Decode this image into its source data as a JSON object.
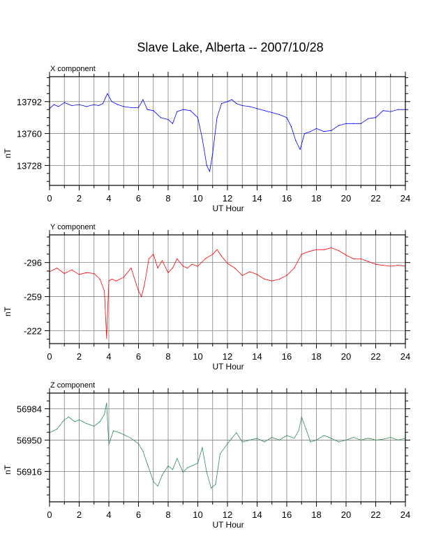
{
  "title": "Slave Lake, Alberta -- 2007/10/28",
  "colors": {
    "x": "#0000ff",
    "y": "#ff0000",
    "z": "#2e8b57",
    "grid": "#808080"
  },
  "chart_data": [
    {
      "type": "line",
      "panel_label": "X component",
      "xlabel": "UT Hour",
      "ylabel": "nT",
      "xlim": [
        0,
        24
      ],
      "ylim": [
        13708,
        13817
      ],
      "x_ticks": [
        "0",
        "2",
        "4",
        "6",
        "8",
        "10",
        "12",
        "14",
        "16",
        "18",
        "20",
        "22",
        "24"
      ],
      "y_ticks": [
        "13792",
        "13760",
        "13728"
      ],
      "y_tick_values": [
        13792,
        13760,
        13728
      ],
      "grid": true,
      "series": [
        {
          "color": "#0000ff",
          "x": [
            0,
            0.3,
            0.6,
            1,
            1.5,
            2,
            2.5,
            3,
            3.3,
            3.6,
            3.9,
            4.2,
            4.6,
            5,
            5.5,
            6,
            6.3,
            6.6,
            7,
            7.5,
            8,
            8.3,
            8.6,
            9,
            9.5,
            10,
            10.3,
            10.6,
            10.8,
            11,
            11.3,
            11.6,
            12,
            12.3,
            12.6,
            13,
            13.5,
            14,
            14.5,
            15,
            15.5,
            16,
            16.3,
            16.6,
            16.9,
            17.2,
            17.6,
            18,
            18.5,
            19,
            19.5,
            20,
            20.5,
            21,
            21.5,
            22,
            22.5,
            23,
            23.5,
            24
          ],
          "values": [
            13785,
            13789,
            13787,
            13791,
            13788,
            13789,
            13787,
            13789,
            13788,
            13790,
            13800,
            13792,
            13789,
            13787,
            13786,
            13786,
            13794,
            13784,
            13783,
            13776,
            13774,
            13770,
            13782,
            13784,
            13783,
            13776,
            13755,
            13728,
            13722,
            13740,
            13776,
            13790,
            13792,
            13794,
            13790,
            13788,
            13787,
            13785,
            13783,
            13781,
            13779,
            13776,
            13767,
            13753,
            13744,
            13760,
            13762,
            13765,
            13762,
            13763,
            13768,
            13770,
            13770,
            13770,
            13775,
            13776,
            13783,
            13782,
            13784,
            13784
          ]
        }
      ]
    },
    {
      "type": "line",
      "panel_label": "Y component",
      "xlabel": "UT Hour",
      "ylabel": "nT",
      "xlim": [
        0,
        24
      ],
      "ylim": [
        -208,
        -326
      ],
      "x_ticks": [
        "0",
        "2",
        "4",
        "6",
        "8",
        "10",
        "12",
        "14",
        "16",
        "18",
        "20",
        "22",
        "24"
      ],
      "y_ticks": [
        "-222",
        "-259",
        "-296"
      ],
      "y_tick_values": [
        -222,
        -259,
        -296
      ],
      "grid": true,
      "series": [
        {
          "color": "#ff0000",
          "x": [
            0,
            0.5,
            1,
            1.5,
            2,
            2.5,
            3,
            3.4,
            3.7,
            3.85,
            4,
            4.2,
            4.5,
            5,
            5.5,
            6,
            6.2,
            6.4,
            6.7,
            7,
            7.3,
            7.6,
            8,
            8.3,
            8.6,
            9,
            9.3,
            9.6,
            10,
            10.5,
            11,
            11.3,
            11.6,
            12,
            12.5,
            13,
            13.5,
            14,
            14.5,
            15,
            15.5,
            16,
            16.5,
            17,
            17.5,
            18,
            18.5,
            19,
            19.5,
            20,
            20.5,
            21,
            21.5,
            22,
            22.5,
            23,
            23.5,
            24
          ],
          "values": [
            -286,
            -290,
            -284,
            -288,
            -283,
            -285,
            -284,
            -278,
            -265,
            -214,
            -276,
            -278,
            -276,
            -280,
            -290,
            -265,
            -259,
            -272,
            -300,
            -305,
            -290,
            -298,
            -285,
            -290,
            -300,
            -292,
            -290,
            -294,
            -292,
            -300,
            -305,
            -310,
            -303,
            -295,
            -290,
            -282,
            -286,
            -283,
            -278,
            -276,
            -278,
            -282,
            -290,
            -305,
            -308,
            -310,
            -310,
            -312,
            -309,
            -304,
            -300,
            -300,
            -297,
            -294,
            -293,
            -292,
            -293,
            -292
          ]
        }
      ]
    },
    {
      "type": "line",
      "panel_label": "Z component",
      "xlabel": "UT Hour",
      "ylabel": "nT",
      "xlim": [
        0,
        24
      ],
      "ylim": [
        56883,
        57001
      ],
      "x_ticks": [
        "0",
        "2",
        "4",
        "6",
        "8",
        "10",
        "12",
        "14",
        "16",
        "18",
        "20",
        "22",
        "24"
      ],
      "y_ticks": [
        "56984",
        "56950",
        "56916"
      ],
      "y_tick_values": [
        56984,
        56950,
        56916
      ],
      "grid": true,
      "series": [
        {
          "color": "#2e8b57",
          "x": [
            0,
            0.5,
            1,
            1.3,
            1.7,
            2,
            2.5,
            3,
            3.4,
            3.7,
            3.85,
            4,
            4.3,
            4.7,
            5,
            5.5,
            6,
            6.3,
            6.6,
            7,
            7.3,
            7.6,
            8,
            8.3,
            8.6,
            9,
            9.3,
            9.6,
            10,
            10.3,
            10.6,
            10.9,
            11.2,
            11.5,
            12,
            12.3,
            12.6,
            13,
            13.5,
            14,
            14.5,
            15,
            15.5,
            16,
            16.5,
            16.8,
            17,
            17.3,
            17.6,
            18,
            18.5,
            19,
            19.5,
            20,
            20.5,
            21,
            21.5,
            22,
            22.5,
            23,
            23.5,
            24
          ],
          "values": [
            56958,
            56962,
            56972,
            56975,
            56970,
            56972,
            56968,
            56965,
            56970,
            56978,
            56990,
            56945,
            56960,
            56958,
            56956,
            56952,
            56946,
            56938,
            56924,
            56905,
            56900,
            56912,
            56922,
            56918,
            56930,
            56915,
            56920,
            56922,
            56925,
            56942,
            56915,
            56898,
            56902,
            56935,
            56946,
            56952,
            56958,
            56948,
            56950,
            56952,
            56948,
            56953,
            56950,
            56955,
            56952,
            56960,
            56975,
            56962,
            56948,
            56950,
            56955,
            56952,
            56948,
            56950,
            56953,
            56950,
            56952,
            56950,
            56951,
            56953,
            56950,
            56952
          ]
        }
      ]
    }
  ]
}
